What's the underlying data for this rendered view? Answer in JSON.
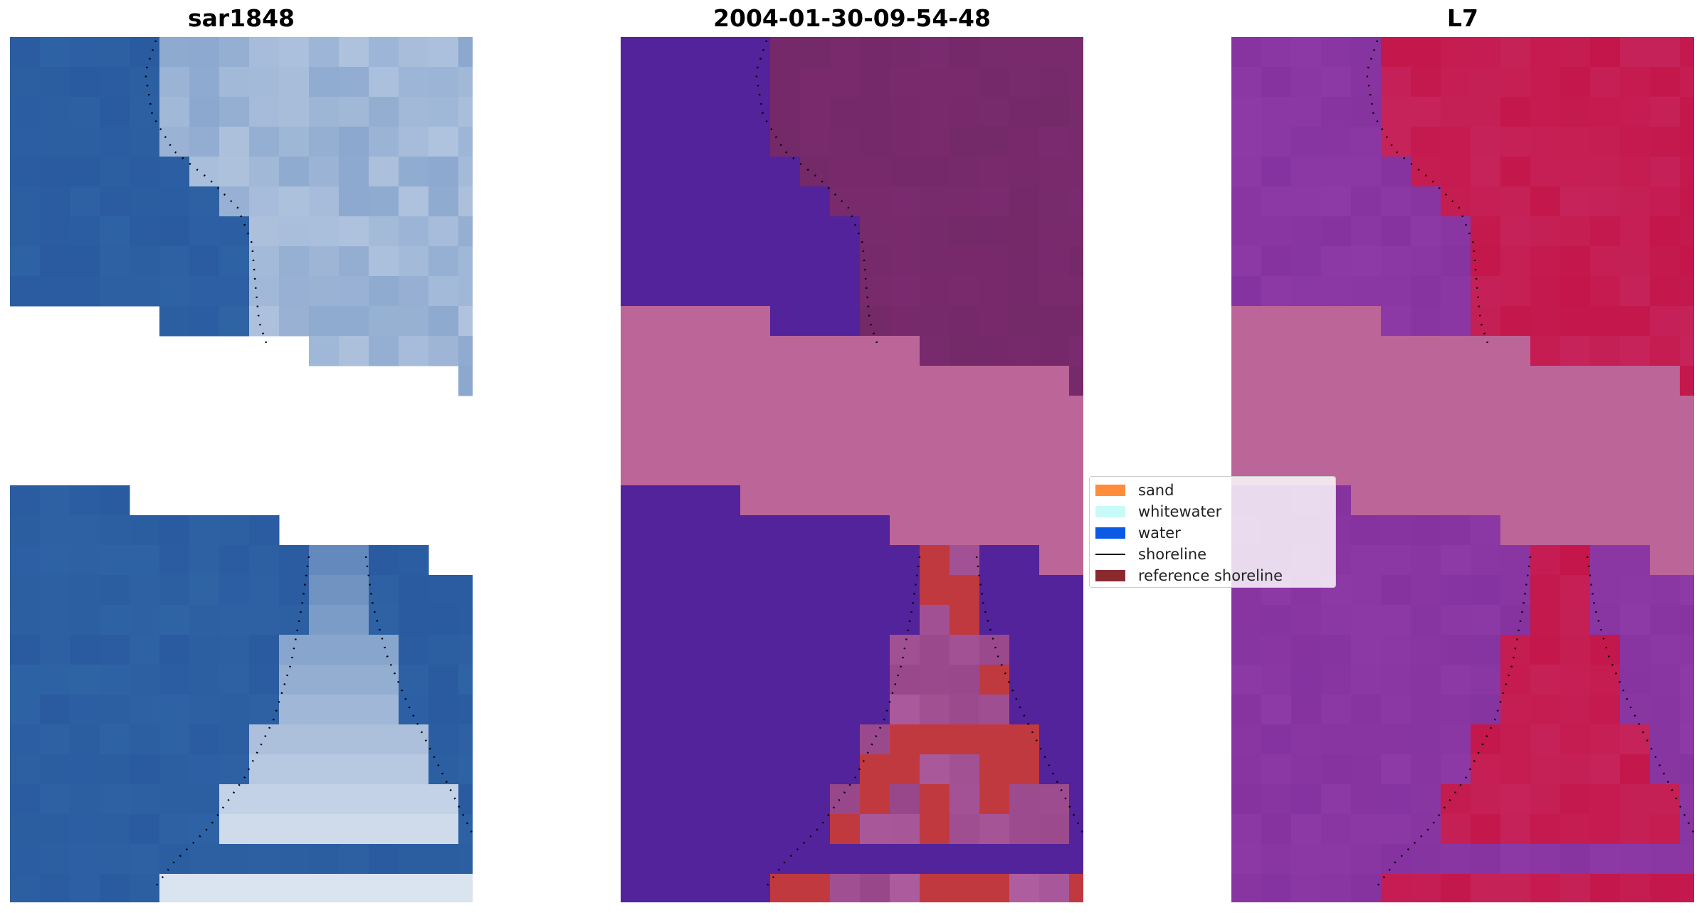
{
  "panels": [
    {
      "title": "sar1848",
      "kind": "rgb"
    },
    {
      "title": "2004-01-30-09-54-48",
      "kind": "classified"
    },
    {
      "title": "L7",
      "kind": "mndwi"
    }
  ],
  "legend": {
    "items": [
      {
        "label": "sand",
        "color": "#ff8c3a",
        "type": "patch"
      },
      {
        "label": "whitewater",
        "color": "#c8fafa",
        "type": "patch"
      },
      {
        "label": "water",
        "color": "#0a5ae6",
        "type": "patch"
      },
      {
        "label": "shoreline",
        "color": "#000000",
        "type": "line"
      },
      {
        "label": "reference shoreline",
        "color": "#8b2a2e",
        "type": "patch"
      }
    ]
  },
  "colors": {
    "rgb_water": "#2a5aa0",
    "rgb_foam": "#e8eef6",
    "class_water": "#52239a",
    "class_land": "#7a2a6e",
    "class_sand": "#c0393f",
    "nodata_fill": "#bb6598",
    "mndwi_low": "#8e3aa6",
    "mndwi_high": "#c4164a"
  }
}
